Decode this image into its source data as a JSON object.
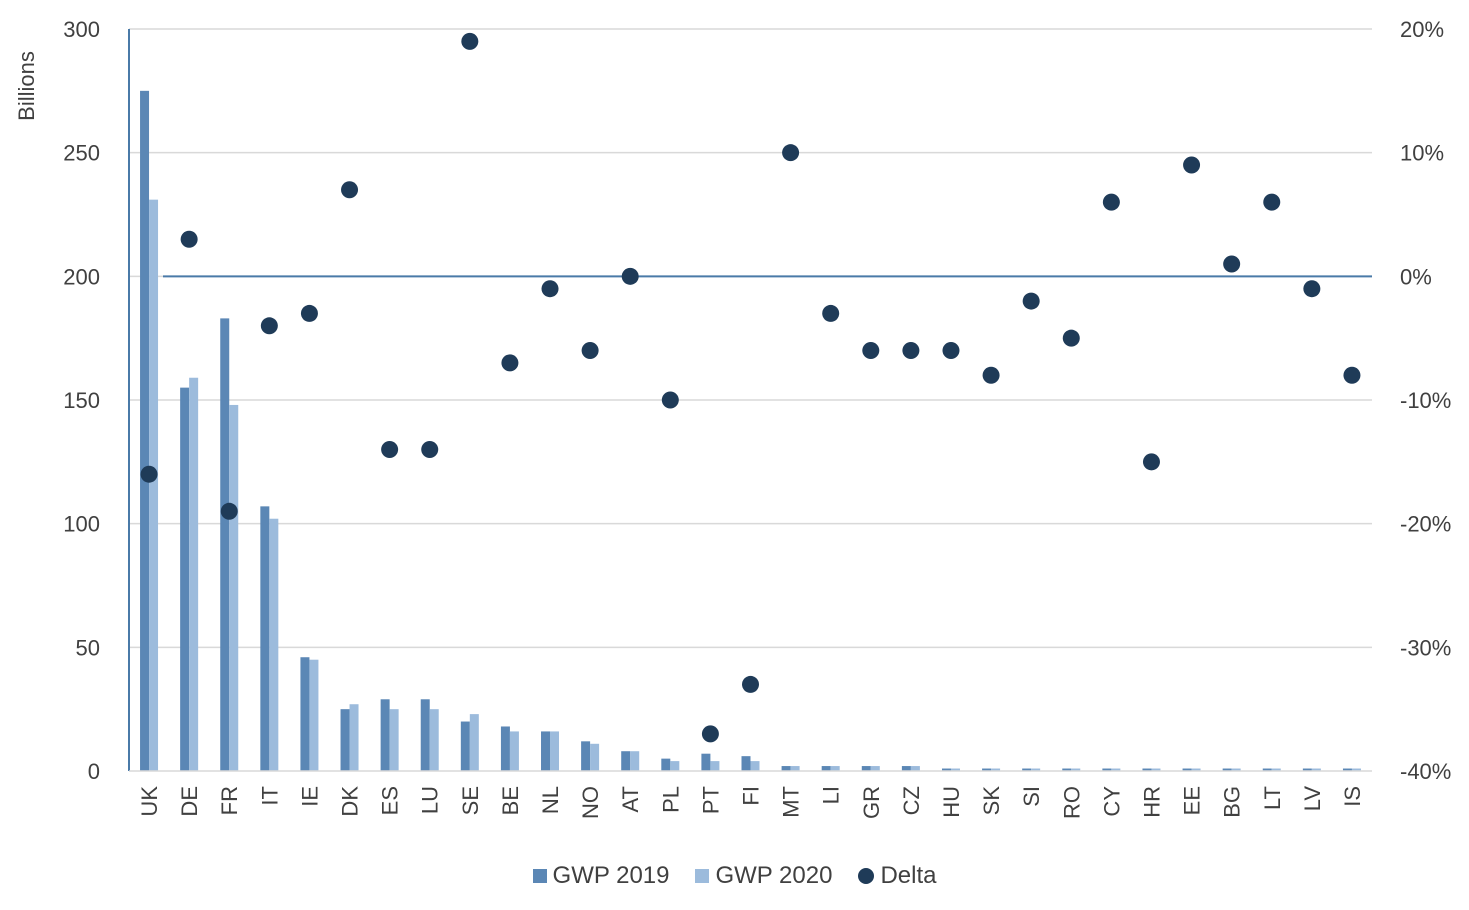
{
  "colors": {
    "gwp2019": "#5b87b5",
    "gwp2020": "#9cbbdc",
    "delta": "#1f3b58",
    "grid": "#d9d9d9",
    "axis": "#4a7aa8",
    "text": "#404040"
  },
  "chart_data": {
    "type": "bar",
    "ylabel": "Billions",
    "ylim": [
      0,
      300
    ],
    "y_ticks": [
      "0",
      "50",
      "100",
      "150",
      "200",
      "250",
      "300"
    ],
    "y2lim": [
      -40,
      20
    ],
    "y2_ticks": [
      "-40%",
      "-30%",
      "-20%",
      "-10%",
      "0%",
      "10%",
      "20%"
    ],
    "grid": true,
    "legend_position": "bottom",
    "categories": [
      "UK",
      "DE",
      "FR",
      "IT",
      "IE",
      "DK",
      "ES",
      "LU",
      "SE",
      "BE",
      "NL",
      "NO",
      "AT",
      "PL",
      "PT",
      "FI",
      "MT",
      "LI",
      "GR",
      "CZ",
      "HU",
      "SK",
      "SI",
      "RO",
      "CY",
      "HR",
      "EE",
      "BG",
      "LT",
      "LV",
      "IS"
    ],
    "series": [
      {
        "name": "GWP 2019",
        "type": "bar",
        "axis": "left",
        "values": [
          275,
          155,
          183,
          107,
          46,
          25,
          29,
          29,
          20,
          18,
          16,
          12,
          8,
          5,
          7,
          6,
          2,
          2,
          2,
          2,
          1,
          1,
          1,
          1,
          1,
          1,
          1,
          1,
          1,
          1,
          1
        ]
      },
      {
        "name": "GWP 2020",
        "type": "bar",
        "axis": "left",
        "values": [
          231,
          159,
          148,
          102,
          45,
          27,
          25,
          25,
          23,
          16,
          16,
          11,
          8,
          4,
          4,
          4,
          2,
          2,
          2,
          2,
          1,
          1,
          1,
          1,
          1,
          1,
          1,
          1,
          1,
          1,
          1
        ]
      },
      {
        "name": "Delta",
        "type": "scatter",
        "axis": "right",
        "unit": "%",
        "values": [
          -16,
          3,
          -19,
          -4,
          -3,
          7,
          -14,
          -14,
          19,
          -7,
          -1,
          -6,
          0,
          -10,
          -37,
          -33,
          10,
          -3,
          -6,
          -6,
          -6,
          -8,
          -2,
          -5,
          6,
          -15,
          9,
          1,
          6,
          -1,
          -8
        ]
      }
    ]
  }
}
